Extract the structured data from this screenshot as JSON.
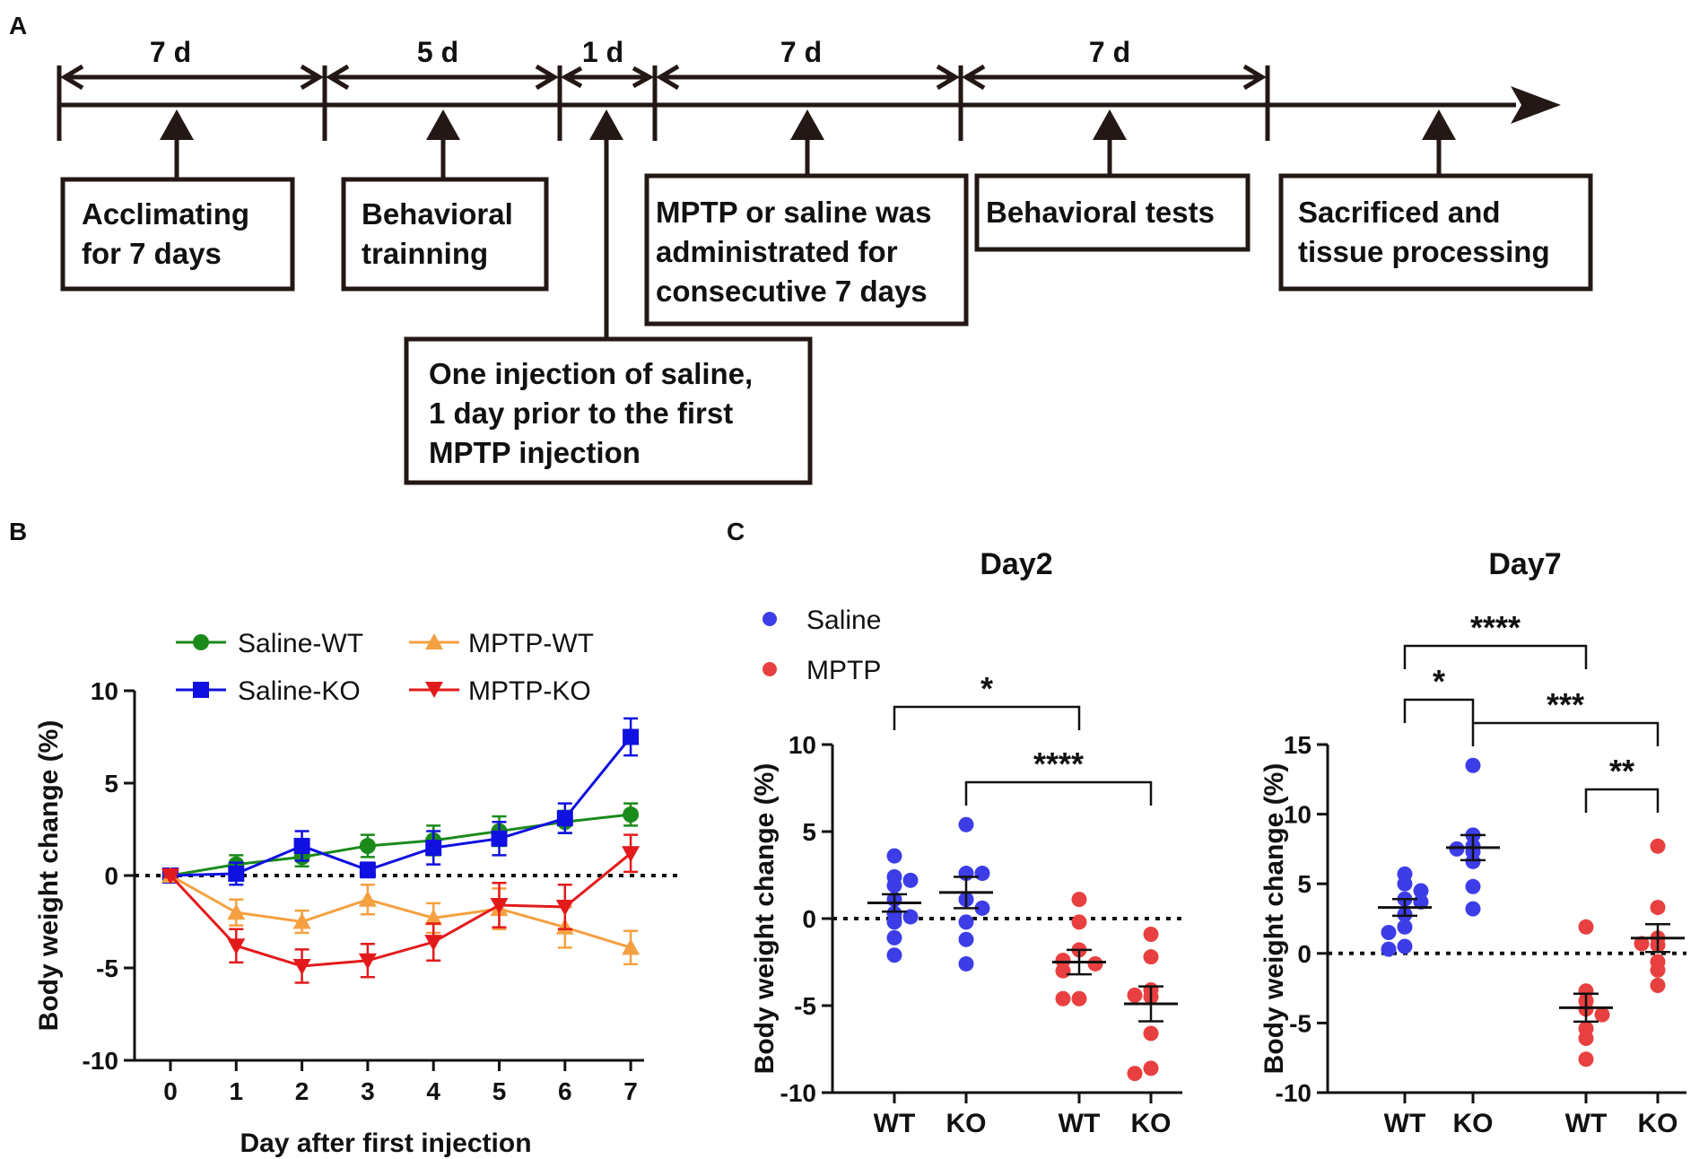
{
  "panel_labels": {
    "a": "A",
    "b": "B",
    "c": "C"
  },
  "colors": {
    "saline_wt": "#1a8a1a",
    "saline_ko": "#1010e0",
    "mptp_wt": "#f5a040",
    "mptp_ko": "#e31a1c",
    "saline_dot": "#3d3de8",
    "mptp_dot": "#e84040",
    "ink": "#231815"
  },
  "timeline": {
    "durations": [
      "7 d",
      "5 d",
      "1 d",
      "7 d",
      "7 d"
    ],
    "steps": [
      {
        "lines": [
          "Acclimating",
          "for 7 days"
        ]
      },
      {
        "lines": [
          "Behavioral",
          "trainning"
        ]
      },
      {
        "lines": [
          "One injection of saline,",
          "1 day prior to the first",
          "MPTP injection"
        ]
      },
      {
        "lines": [
          "MPTP or saline was",
          "administrated for",
          "consecutive 7 days"
        ]
      },
      {
        "lines": [
          "Behavioral tests"
        ]
      },
      {
        "lines": [
          "Sacrificed and",
          "tissue processing"
        ]
      }
    ]
  },
  "chart_data": [
    {
      "id": "B",
      "type": "line",
      "title": "",
      "xlabel": "Day after first injection",
      "ylabel": "Body weight change (%)",
      "x": [
        0,
        1,
        2,
        3,
        4,
        5,
        6,
        7
      ],
      "xticks": [
        "0",
        "1",
        "2",
        "3",
        "4",
        "5",
        "6",
        "7"
      ],
      "ylim": [
        -10,
        10
      ],
      "yticks": [
        -10,
        -5,
        0,
        5,
        10
      ],
      "ytick_labels": [
        "-10",
        "-5",
        "0",
        "5",
        "10"
      ],
      "reference_line": 0,
      "series": [
        {
          "name": "Saline-WT",
          "marker": "circle",
          "color": "#1a8a1a",
          "values": [
            0,
            0.6,
            1.0,
            1.6,
            1.9,
            2.4,
            2.9,
            3.3
          ],
          "errors": [
            0.1,
            0.5,
            0.5,
            0.6,
            0.8,
            0.8,
            0.6,
            0.6
          ]
        },
        {
          "name": "Saline-KO",
          "marker": "square",
          "color": "#1010e0",
          "values": [
            0,
            0.1,
            1.6,
            0.3,
            1.5,
            2.0,
            3.1,
            7.5
          ],
          "errors": [
            0.1,
            0.6,
            0.8,
            0.4,
            0.9,
            0.9,
            0.8,
            1.0
          ]
        },
        {
          "name": "MPTP-WT",
          "marker": "triangle-up",
          "color": "#f5a040",
          "values": [
            0,
            -2.0,
            -2.5,
            -1.3,
            -2.3,
            -1.8,
            -2.8,
            -3.9
          ],
          "errors": [
            0.1,
            0.7,
            0.6,
            0.8,
            0.8,
            1.1,
            1.1,
            0.9
          ]
        },
        {
          "name": "MPTP-KO",
          "marker": "triangle-down",
          "color": "#e31a1c",
          "values": [
            0,
            -3.8,
            -4.9,
            -4.6,
            -3.6,
            -1.6,
            -1.7,
            1.2
          ],
          "errors": [
            0.1,
            0.9,
            0.9,
            0.9,
            1.0,
            1.2,
            1.2,
            1.0
          ]
        }
      ]
    },
    {
      "id": "C-Day2",
      "type": "scatter",
      "title": "Day2",
      "ylabel": "Body weight change (%)",
      "ylim": [
        -10,
        10
      ],
      "yticks": [
        -10,
        -5,
        0,
        5,
        10
      ],
      "ytick_labels": [
        "-10",
        "-5",
        "0",
        "5",
        "10"
      ],
      "legend": [
        {
          "name": "Saline"
        },
        {
          "name": "MPTP"
        }
      ],
      "groups": [
        {
          "label": "WT",
          "treatment": "Saline",
          "mean": 0.9,
          "sem": 0.5,
          "values": [
            3.6,
            2.4,
            2.2,
            1.9,
            1.1,
            0.3,
            0.1,
            -0.2,
            -1.1,
            -2.1
          ]
        },
        {
          "label": "KO",
          "treatment": "Saline",
          "mean": 1.5,
          "sem": 0.9,
          "values": [
            5.4,
            2.6,
            2.6,
            1.1,
            0.6,
            -0.2,
            -1.2,
            -2.6
          ]
        },
        {
          "label": "WT",
          "treatment": "MPTP",
          "mean": -2.5,
          "sem": 0.7,
          "values": [
            1.1,
            -0.2,
            -1.8,
            -2.4,
            -2.6,
            -3.0,
            -4.6,
            -4.6
          ]
        },
        {
          "label": "KO",
          "treatment": "MPTP",
          "mean": -4.9,
          "sem": 1.0,
          "values": [
            -0.9,
            -2.2,
            -4.1,
            -4.4,
            -4.5,
            -6.6,
            -8.6,
            -8.9
          ]
        }
      ],
      "brackets": [
        {
          "from": 0,
          "to": 2,
          "label": "*"
        },
        {
          "from": 1,
          "to": 3,
          "label": "****"
        }
      ]
    },
    {
      "id": "C-Day7",
      "type": "scatter",
      "title": "Day7",
      "ylabel": "Body weight change (%)",
      "ylim": [
        -10,
        15
      ],
      "yticks": [
        -10,
        -5,
        0,
        5,
        10,
        15
      ],
      "ytick_labels": [
        "-10",
        "-5",
        "0",
        "5",
        "10",
        "15"
      ],
      "groups": [
        {
          "label": "WT",
          "treatment": "Saline",
          "mean": 3.3,
          "sem": 0.6,
          "values": [
            5.7,
            5.0,
            4.5,
            3.9,
            3.7,
            2.8,
            1.9,
            1.5,
            0.5,
            0.3
          ]
        },
        {
          "label": "KO",
          "treatment": "Saline",
          "mean": 7.6,
          "sem": 0.9,
          "values": [
            13.5,
            8.5,
            7.7,
            7.5,
            7.3,
            6.6,
            4.8,
            3.2
          ]
        },
        {
          "label": "WT",
          "treatment": "MPTP",
          "mean": -3.9,
          "sem": 1.0,
          "values": [
            1.9,
            -2.7,
            -3.4,
            -4.0,
            -4.4,
            -5.4,
            -6.1,
            -7.6
          ]
        },
        {
          "label": "KO",
          "treatment": "MPTP",
          "mean": 1.1,
          "sem": 1.0,
          "values": [
            7.7,
            3.3,
            1.1,
            0.7,
            0.6,
            -0.6,
            -1.2,
            -2.3
          ]
        }
      ],
      "brackets": [
        {
          "from": 0,
          "to": 2,
          "label": "****"
        },
        {
          "from": 0,
          "to": 1,
          "label": "*"
        },
        {
          "from": 1,
          "to": 3,
          "label": "***"
        },
        {
          "from": 2,
          "to": 3,
          "label": "**"
        }
      ]
    }
  ]
}
